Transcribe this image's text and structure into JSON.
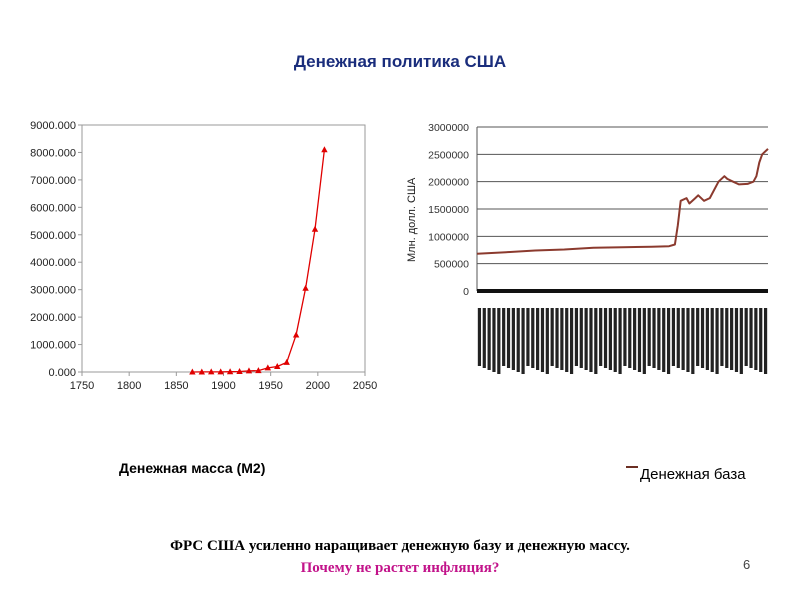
{
  "title": "Денежная политика США",
  "footer": {
    "line1": "ФРС США усиленно наращивает денежную базу и денежную массу.",
    "line2": "Почему не растет инфляция?"
  },
  "page_number": "6",
  "colors": {
    "title": "#1a2d7c",
    "left_series": "#e00000",
    "right_series": "#8b3a2e",
    "question": "#c2138a"
  },
  "chart_data": [
    {
      "type": "line",
      "caption": "Денежная масса (M2)",
      "xlim": [
        1750,
        2050
      ],
      "ylim": [
        0,
        9000
      ],
      "x_ticks": [
        1750,
        1800,
        1850,
        1900,
        1950,
        2000,
        2050
      ],
      "y_ticks": [
        0,
        1000,
        2000,
        3000,
        4000,
        5000,
        6000,
        7000,
        8000,
        9000
      ],
      "y_tick_labels": [
        "0.000",
        "1000.000",
        "2000.000",
        "3000.000",
        "4000.000",
        "5000.000",
        "6000.000",
        "7000.000",
        "8000.000",
        "9000.000"
      ],
      "grid": false,
      "marker": "triangle",
      "series": [
        {
          "x": [
            1867,
            1877,
            1887,
            1897,
            1907,
            1917,
            1927,
            1937,
            1947,
            1957,
            1967,
            1977,
            1987,
            1997,
            2007
          ],
          "y": [
            1,
            2,
            3,
            5,
            10,
            20,
            40,
            50,
            150,
            200,
            350,
            1350,
            3050,
            5200,
            8100
          ]
        }
      ]
    },
    {
      "type": "line",
      "ylabel": "Млн. долл. США",
      "legend": "Денежная база",
      "legend_position": "bottom-right",
      "ylim": [
        0,
        3000000
      ],
      "y_ticks": [
        0,
        500000,
        1000000,
        1500000,
        2000000,
        2500000,
        3000000
      ],
      "y_tick_labels": [
        "0",
        "500000",
        "1000000",
        "1500000",
        "2000000",
        "2500000",
        "3000000"
      ],
      "grid": true,
      "x_tick_labels_legible": false,
      "x_ticks_count": 60,
      "series": [
        {
          "name": "Денежная база",
          "x": [
            0,
            0.1,
            0.2,
            0.3,
            0.4,
            0.5,
            0.6,
            0.66,
            0.68,
            0.69,
            0.7,
            0.72,
            0.73,
            0.75,
            0.76,
            0.78,
            0.8,
            0.83,
            0.85,
            0.86,
            0.88,
            0.9,
            0.93,
            0.95,
            0.96,
            0.97,
            0.98,
            1.0
          ],
          "y": [
            680000,
            710000,
            740000,
            760000,
            790000,
            800000,
            810000,
            820000,
            850000,
            1200000,
            1650000,
            1700000,
            1600000,
            1700000,
            1750000,
            1650000,
            1700000,
            2000000,
            2100000,
            2050000,
            2000000,
            1950000,
            1960000,
            2000000,
            2100000,
            2350000,
            2500000,
            2600000
          ]
        }
      ]
    }
  ]
}
